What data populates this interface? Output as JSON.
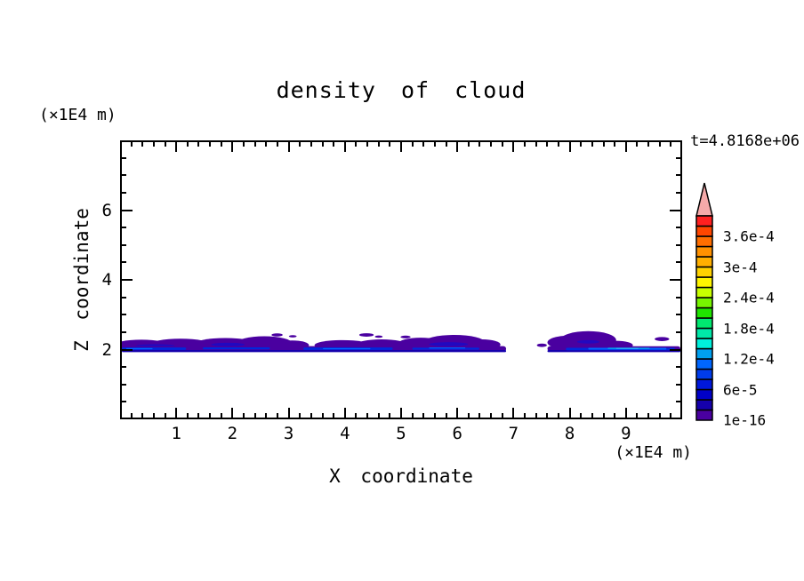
{
  "header": {
    "title": "density of cloud",
    "timestamp": "t=4.8168e+06"
  },
  "axes": {
    "x": {
      "label": "X coordinate",
      "unit": "(×1E4 m)",
      "range": [
        0,
        10
      ],
      "major_tick_labels": [
        "1",
        "2",
        "3",
        "4",
        "5",
        "6",
        "7",
        "8",
        "9"
      ],
      "minor_step": 0.2
    },
    "z": {
      "label": "Z coordinate",
      "unit": "(×1E4 m)",
      "range": [
        0,
        8
      ],
      "major_tick_labels": [
        "2",
        "4",
        "6"
      ],
      "major_tick_values": [
        2,
        4,
        6
      ],
      "minor_step": 0.5
    }
  },
  "colorbar": {
    "segment_colors_bottom_to_top": [
      "#4A00A0",
      "#1500AC",
      "#0000C8",
      "#0018DC",
      "#003CEC",
      "#0066FF",
      "#00A0F0",
      "#00F0DC",
      "#00E8A8",
      "#00E870",
      "#20E400",
      "#78F500",
      "#C8FF00",
      "#FFF500",
      "#FFD200",
      "#FFAF00",
      "#FF9100",
      "#FF6E00",
      "#FF4600",
      "#FF2020"
    ],
    "overflow_arrow_color": "#F5A9A9",
    "labels": [
      {
        "text": "3.6e-4",
        "level": 18
      },
      {
        "text": "3e-4",
        "level": 15
      },
      {
        "text": "2.4e-4",
        "level": 12
      },
      {
        "text": "1.8e-4",
        "level": 9
      },
      {
        "text": "1.2e-4",
        "level": 6
      },
      {
        "text": "6e-5",
        "level": 3
      },
      {
        "text": "1e-16",
        "level": 0
      }
    ]
  },
  "chart_data": {
    "type": "heatmap",
    "title": "density of cloud",
    "xlabel": "X coordinate (×1E4 m)",
    "ylabel": "Z coordinate (×1E4 m)",
    "xlim": [
      0,
      10
    ],
    "ylim": [
      0,
      8
    ],
    "grid": false,
    "legend_position": "right-colorbar",
    "visible_contour_levels": [
      "1e-16",
      "6e-5",
      "1.2e-4",
      "1.8e-4",
      "2.4e-4",
      "3e-4",
      "3.6e-4"
    ],
    "description": "Thin stratiform cloud density band centred near z=2 (×1E4 m) spanning x=0..10 with a clear gap near x=6.9..7.6; density mostly at lowest contour levels (purple/blue), small bright patch near x=9, z=2.",
    "cloud": {
      "band_z_center": 2.0,
      "gap_x": [
        6.9,
        7.6
      ],
      "purple": "#4A00A0",
      "puffs": [
        [
          0.35,
          2.1,
          0.5,
          0.16
        ],
        [
          1.05,
          2.12,
          0.55,
          0.17
        ],
        [
          1.85,
          2.13,
          0.55,
          0.18
        ],
        [
          2.55,
          2.16,
          0.5,
          0.2
        ],
        [
          3.05,
          2.1,
          0.3,
          0.14
        ],
        [
          3.95,
          2.1,
          0.5,
          0.15
        ],
        [
          4.65,
          2.12,
          0.45,
          0.15
        ],
        [
          5.35,
          2.15,
          0.4,
          0.17
        ],
        [
          5.95,
          2.18,
          0.55,
          0.22
        ],
        [
          6.45,
          2.12,
          0.33,
          0.15
        ],
        [
          8.0,
          2.18,
          0.38,
          0.2
        ],
        [
          8.35,
          2.25,
          0.5,
          0.26
        ],
        [
          8.85,
          2.1,
          0.3,
          0.13
        ]
      ],
      "specks": [
        [
          2.78,
          2.4,
          0.1,
          0.045
        ],
        [
          3.06,
          2.36,
          0.07,
          0.035
        ],
        [
          4.38,
          2.4,
          0.13,
          0.05
        ],
        [
          4.6,
          2.35,
          0.07,
          0.035
        ],
        [
          5.08,
          2.34,
          0.09,
          0.04
        ],
        [
          7.52,
          2.1,
          0.09,
          0.05
        ],
        [
          9.67,
          2.28,
          0.13,
          0.06
        ]
      ],
      "patches": [
        [
          0.6,
          2.08,
          0.35,
          0.05,
          "#2208C0"
        ],
        [
          1.9,
          2.12,
          0.3,
          0.05,
          "#2208C0"
        ],
        [
          5.85,
          2.13,
          0.35,
          0.06,
          "#2208C0"
        ],
        [
          8.35,
          2.2,
          0.2,
          0.05,
          "#2208C0"
        ]
      ],
      "streaks": [
        [
          0.0,
          6.88,
          1.995,
          0.16,
          "#4A00A0"
        ],
        [
          7.62,
          10.0,
          2.0,
          0.14,
          "#4A00A0"
        ],
        [
          0.0,
          6.88,
          1.93,
          0.06,
          "#1500AC"
        ],
        [
          7.62,
          10.0,
          1.93,
          0.06,
          "#1500AC"
        ],
        [
          0.0,
          1.15,
          2.0,
          0.07,
          "#0028DC"
        ],
        [
          1.45,
          2.65,
          2.01,
          0.06,
          "#0028DC"
        ],
        [
          3.25,
          4.85,
          2.0,
          0.07,
          "#0028DC"
        ],
        [
          5.2,
          6.4,
          2.0,
          0.06,
          "#0028DC"
        ],
        [
          7.95,
          9.9,
          1.99,
          0.07,
          "#0028DC"
        ],
        [
          0.08,
          0.55,
          2.0,
          0.035,
          "#0064FF"
        ],
        [
          3.6,
          4.45,
          2.0,
          0.035,
          "#0064FF"
        ],
        [
          5.5,
          6.15,
          2.02,
          0.03,
          "#0064FF"
        ],
        [
          8.35,
          9.75,
          2.0,
          0.05,
          "#0064FF"
        ],
        [
          8.7,
          9.45,
          2.01,
          0.035,
          "#00A8F0"
        ],
        [
          8.85,
          9.25,
          2.01,
          0.02,
          "#40CFFF"
        ]
      ]
    }
  }
}
